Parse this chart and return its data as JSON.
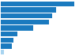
{
  "values": [
    9080,
    6800,
    6300,
    5900,
    4000,
    2000,
    1600,
    1400,
    350
  ],
  "bar_color": "#1a7abf",
  "bottom_bar_color": "#a8d4f0",
  "background_color": "#ffffff",
  "figsize": [
    1.0,
    0.71
  ],
  "dpi": 100
}
